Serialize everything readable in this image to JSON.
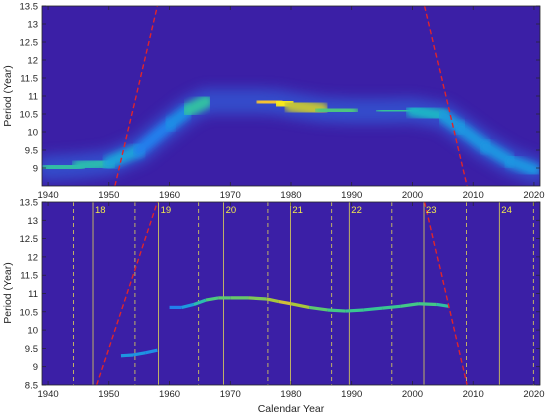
{
  "chart_data": [
    {
      "type": "heatmap",
      "title": "",
      "xlabel": "",
      "ylabel": "Period (Year)",
      "xlim": [
        1939,
        2021
      ],
      "ylim": [
        8.5,
        13.5
      ],
      "x_ticks": [
        1940,
        1950,
        1960,
        1970,
        1980,
        1990,
        2000,
        2010,
        2020
      ],
      "y_ticks": [
        9,
        9.5,
        10,
        10.5,
        11,
        11.5,
        12,
        12.5,
        13,
        13.5
      ],
      "y_tick_labels": [
        "9",
        "9.5",
        "10",
        "10.5",
        "11",
        "11.5",
        "12",
        "12.5",
        "13",
        "13.5"
      ],
      "ridge": {
        "x": [
          1940,
          1945,
          1950,
          1955,
          1960,
          1963,
          1966,
          1970,
          1975,
          1978,
          1980,
          1985,
          1990,
          1995,
          2000,
          2005,
          2008,
          2012,
          2016,
          2020
        ],
        "y": [
          9.0,
          9.05,
          9.15,
          9.5,
          10.2,
          10.6,
          10.85,
          10.85,
          10.85,
          10.82,
          10.75,
          10.62,
          10.58,
          10.58,
          10.6,
          10.45,
          10.1,
          9.6,
          9.2,
          8.95
        ],
        "intensity": [
          0.55,
          0.55,
          0.5,
          0.3,
          0.25,
          0.4,
          0.7,
          0.75,
          0.8,
          1.0,
          0.95,
          0.65,
          0.6,
          0.6,
          0.55,
          0.4,
          0.35,
          0.35,
          0.35,
          0.35
        ]
      },
      "cone_of_influence": {
        "left": [
          [
            1951,
            8.5
          ],
          [
            1958,
            13.5
          ]
        ],
        "right": [
          [
            2002,
            13.5
          ],
          [
            2009,
            8.5
          ]
        ]
      },
      "colors": {
        "background": "#3b1fa6",
        "cone": "#e0242b"
      }
    },
    {
      "type": "heatmap",
      "title": "",
      "xlabel": "Calendar Year",
      "ylabel": "Period (Year)",
      "xlim": [
        1939,
        2021
      ],
      "ylim": [
        8.5,
        13.5
      ],
      "x_ticks": [
        1940,
        1950,
        1960,
        1970,
        1980,
        1990,
        2000,
        2010,
        2020
      ],
      "y_ticks": [
        8.5,
        9,
        9.5,
        10,
        10.5,
        11,
        11.5,
        12,
        12.5,
        13,
        13.5
      ],
      "y_tick_labels": [
        "8.5",
        "9",
        "9.5",
        "10",
        "10.5",
        "11",
        "11.5",
        "12",
        "12.5",
        "13",
        "13.5"
      ],
      "solar_cycles": [
        {
          "label": "18",
          "start": 1944.2,
          "max": 1947.4,
          "end": 1954.3
        },
        {
          "label": "19",
          "start": 1954.3,
          "max": 1958.2,
          "end": 1964.8
        },
        {
          "label": "20",
          "start": 1964.8,
          "max": 1968.9,
          "end": 1976.2
        },
        {
          "label": "21",
          "start": 1976.2,
          "max": 1979.9,
          "end": 1986.7
        },
        {
          "label": "22",
          "start": 1986.7,
          "max": 1989.6,
          "end": 1996.6
        },
        {
          "label": "23",
          "start": 1996.6,
          "max": 2001.9,
          "end": 2008.9
        },
        {
          "label": "24",
          "start": 2008.9,
          "max": 2014.3,
          "end": 2019.9
        }
      ],
      "ridge": {
        "x": [
          1952,
          1954,
          1956,
          1958,
          1960,
          1962,
          1964,
          1966,
          1968,
          1970,
          1973,
          1976,
          1978,
          1980,
          1983,
          1986,
          1989,
          1992,
          1995,
          1998,
          2001,
          2004,
          2006
        ],
        "y": [
          9.3,
          9.32,
          9.38,
          9.45,
          10.62,
          10.62,
          10.7,
          10.82,
          10.88,
          10.88,
          10.88,
          10.85,
          10.78,
          10.72,
          10.62,
          10.55,
          10.52,
          10.55,
          10.6,
          10.65,
          10.72,
          10.7,
          10.65
        ],
        "intensity": [
          0.35,
          0.35,
          0.35,
          0.3,
          0.25,
          0.3,
          0.45,
          0.6,
          0.65,
          0.65,
          0.68,
          0.72,
          0.8,
          0.85,
          0.68,
          0.62,
          0.6,
          0.58,
          0.58,
          0.6,
          0.62,
          0.6,
          0.5
        ]
      },
      "cone_of_influence": {
        "left": [
          [
            1948,
            8.5
          ],
          [
            1958,
            13.5
          ]
        ],
        "right": [
          [
            2002,
            13.5
          ],
          [
            2009,
            8.5
          ]
        ]
      },
      "colors": {
        "background": "#3b1fa6",
        "cone": "#e0242b",
        "cycle_max": "#f2e94e",
        "cycle_min": "#f2e94e"
      }
    }
  ]
}
